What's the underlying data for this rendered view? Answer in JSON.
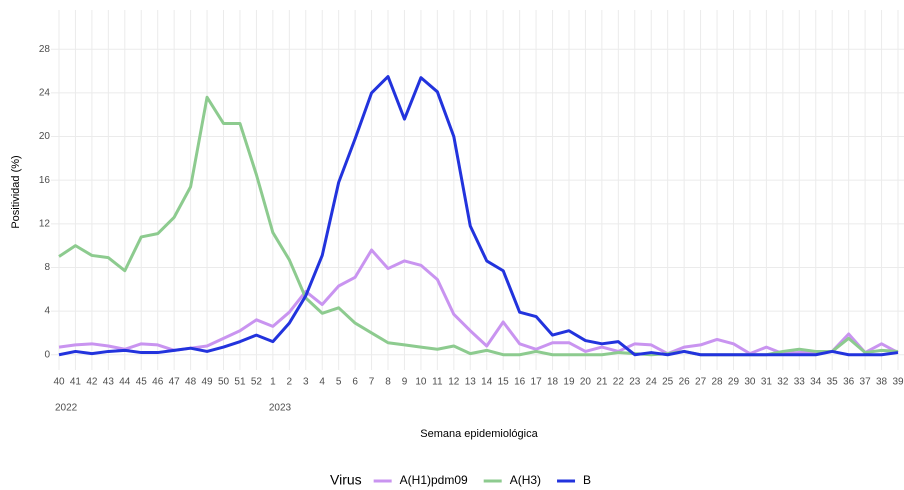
{
  "chart_data": {
    "type": "line",
    "x_label": "Semana epidemiológica",
    "y_label": "Positividad (%)",
    "categories": [
      "40",
      "41",
      "42",
      "43",
      "44",
      "45",
      "46",
      "47",
      "48",
      "49",
      "50",
      "51",
      "52",
      "1",
      "2",
      "3",
      "4",
      "5",
      "6",
      "7",
      "8",
      "9",
      "10",
      "11",
      "12",
      "13",
      "14",
      "15",
      "16",
      "17",
      "18",
      "19",
      "20",
      "21",
      "22",
      "23",
      "24",
      "25",
      "26",
      "27",
      "28",
      "29",
      "30",
      "31",
      "32",
      "33",
      "34",
      "35",
      "36",
      "37",
      "38",
      "39"
    ],
    "year_labels": [
      {
        "text": "2022",
        "at": "40"
      },
      {
        "text": "2023",
        "at": "1"
      }
    ],
    "legend_title": "Virus",
    "legend_position": "bottom",
    "grid": true,
    "ylim": [
      -1.4,
      31.6
    ],
    "yticks": [
      0,
      4,
      8,
      12,
      16,
      20,
      24,
      28
    ],
    "series": [
      {
        "name": "A(H1)pdm09",
        "color": "#c994f0",
        "values": [
          0.7,
          0.9,
          1.0,
          0.8,
          0.5,
          1.0,
          0.9,
          0.4,
          0.6,
          0.8,
          1.5,
          2.2,
          3.2,
          2.6,
          3.9,
          5.8,
          4.6,
          6.3,
          7.1,
          9.6,
          7.9,
          8.6,
          8.2,
          6.9,
          3.7,
          2.2,
          0.8,
          3.0,
          1.0,
          0.5,
          1.1,
          1.1,
          0.3,
          0.7,
          0.3,
          1.0,
          0.9,
          0.1,
          0.7,
          0.9,
          1.4,
          1.0,
          0.1,
          0.7,
          0.1,
          0.2,
          0.2,
          0.3,
          1.9,
          0.2,
          1.0,
          0.2
        ]
      },
      {
        "name": "A(H3)",
        "color": "#8dcb8f",
        "values": [
          9.0,
          10.0,
          9.1,
          8.9,
          7.7,
          10.8,
          11.1,
          12.6,
          15.4,
          23.6,
          21.2,
          21.2,
          16.5,
          11.2,
          8.7,
          5.2,
          3.8,
          4.3,
          2.9,
          2.0,
          1.1,
          0.9,
          0.7,
          0.5,
          0.8,
          0.1,
          0.4,
          0.0,
          0.0,
          0.3,
          0.0,
          0.0,
          0.0,
          0.0,
          0.2,
          0.1,
          0.0,
          0.1,
          0.3,
          0.0,
          0.0,
          0.0,
          0.0,
          0.0,
          0.3,
          0.5,
          0.3,
          0.3,
          1.5,
          0.2,
          0.4,
          0.3
        ]
      },
      {
        "name": "B",
        "color": "#2233dd",
        "values": [
          0.0,
          0.3,
          0.1,
          0.3,
          0.4,
          0.2,
          0.2,
          0.4,
          0.6,
          0.3,
          0.7,
          1.2,
          1.8,
          1.2,
          2.9,
          5.4,
          9.1,
          15.8,
          19.8,
          24.0,
          25.5,
          21.6,
          25.4,
          24.1,
          20.0,
          11.8,
          8.6,
          7.7,
          3.9,
          3.5,
          1.8,
          2.2,
          1.3,
          1.0,
          1.2,
          0.0,
          0.2,
          0.0,
          0.3,
          0.0,
          0.0,
          0.0,
          0.0,
          0.0,
          0.0,
          0.0,
          0.0,
          0.3,
          0.0,
          0.0,
          0.0,
          0.2
        ]
      }
    ]
  }
}
